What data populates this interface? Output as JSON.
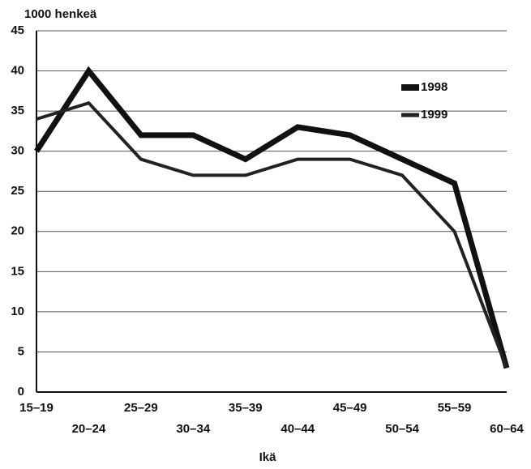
{
  "chart_data": {
    "type": "line",
    "title": "1000 henkeä",
    "x_label": "Ikä",
    "categories": [
      "15–19",
      "20–24",
      "25–29",
      "30–34",
      "35–39",
      "40–44",
      "45–49",
      "50–54",
      "55–59",
      "60–64"
    ],
    "series": [
      {
        "name": "1998",
        "color": "#111111",
        "values": [
          30,
          40,
          32,
          32,
          29,
          33,
          32,
          29,
          26,
          3
        ]
      },
      {
        "name": "1999",
        "color": "#222222",
        "values": [
          34,
          36,
          29,
          27,
          27,
          29,
          29,
          27,
          20,
          3
        ]
      }
    ],
    "ylim": [
      0,
      45
    ],
    "yticks": [
      0,
      5,
      10,
      15,
      20,
      25,
      30,
      35,
      40,
      45
    ],
    "grid": true,
    "legend": "upper right"
  }
}
